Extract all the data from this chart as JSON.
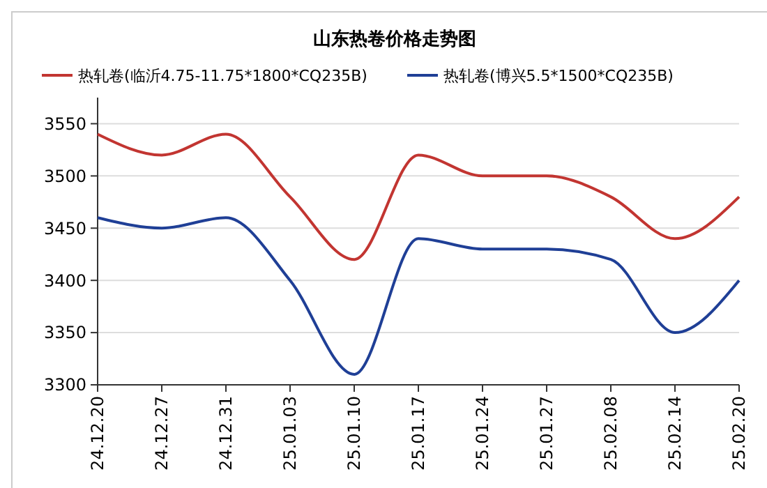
{
  "chart_data": {
    "type": "line",
    "title": "山东热卷价格走势图",
    "categories": [
      "24.12.20",
      "24.12.27",
      "24.12.31",
      "25.01.03",
      "25.01.10",
      "25.01.17",
      "25.01.24",
      "25.01.27",
      "25.02.08",
      "25.02.14",
      "25.02.20"
    ],
    "series": [
      {
        "name": "热轧卷(临沂4.75-11.75*1800*CQ235B)",
        "color": "#c23531",
        "values": [
          3540,
          3520,
          3540,
          3480,
          3420,
          3520,
          3500,
          3500,
          3480,
          3440,
          3480
        ]
      },
      {
        "name": "热轧卷(博兴5.5*1500*CQ235B)",
        "color": "#1f3f96",
        "values": [
          3460,
          3450,
          3460,
          3400,
          3310,
          3440,
          3430,
          3430,
          3420,
          3350,
          3400
        ]
      }
    ],
    "ylim": [
      3300,
      3575
    ],
    "yticks": [
      3300,
      3350,
      3400,
      3450,
      3500,
      3550
    ],
    "grid": "y",
    "legend": "top",
    "marker": "none",
    "line_style": "solid"
  }
}
